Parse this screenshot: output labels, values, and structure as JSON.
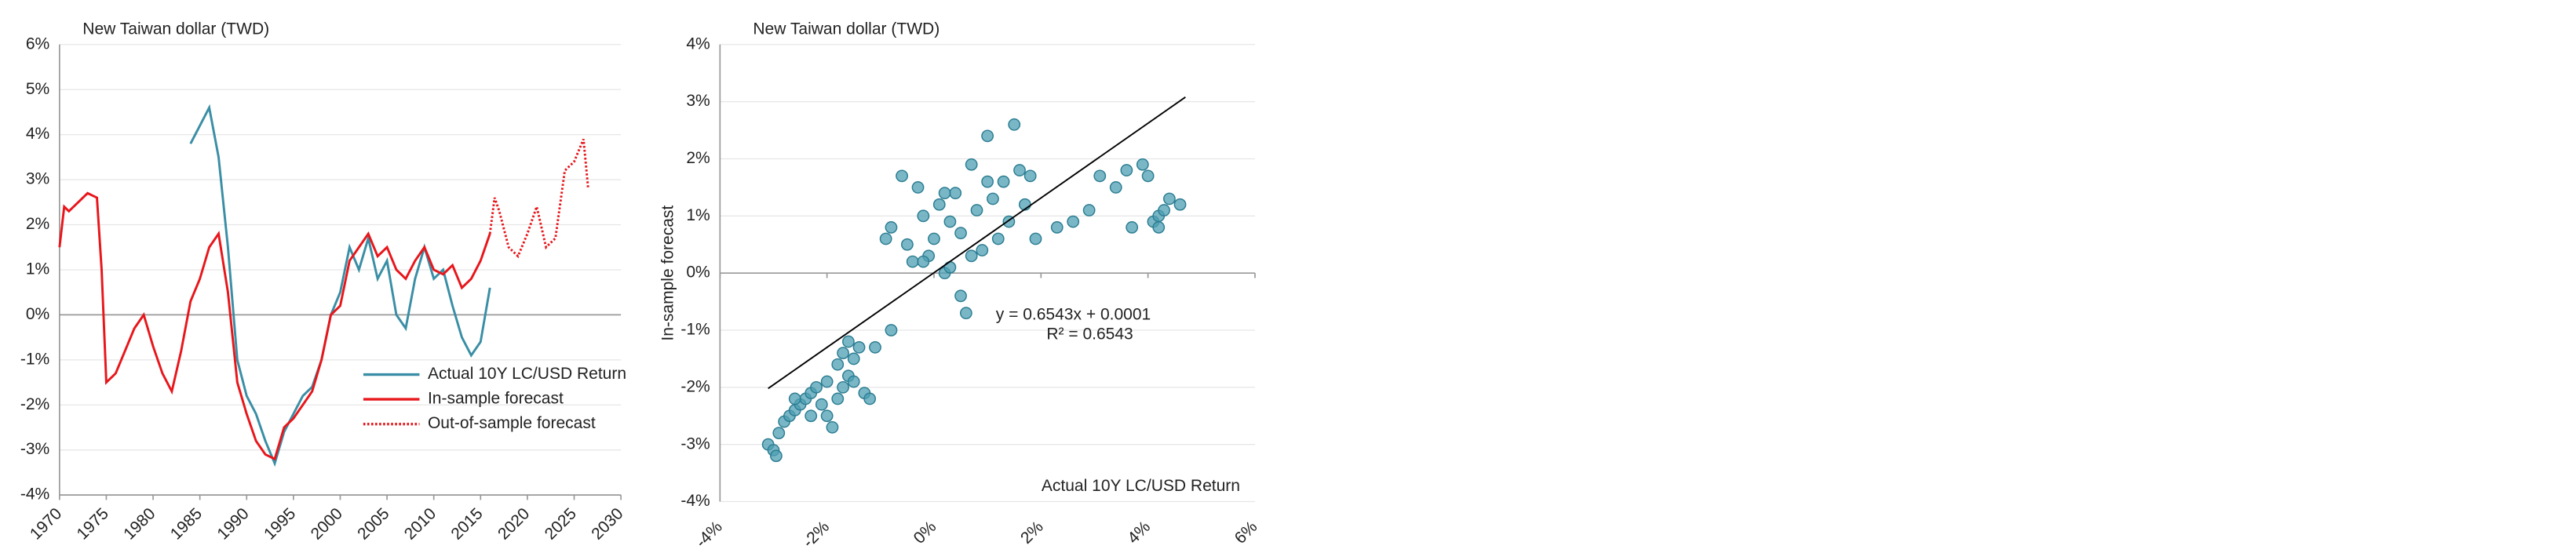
{
  "chart_data": [
    {
      "type": "line",
      "title": "New Taiwan dollar (TWD)",
      "xlim": [
        1970,
        2030
      ],
      "xticks": [
        1970,
        1975,
        1980,
        1985,
        1990,
        1995,
        2000,
        2005,
        2010,
        2015,
        2020,
        2025,
        2030
      ],
      "ylim": [
        -4,
        6
      ],
      "yticks": [
        {
          "value": -4,
          "label": "-4%"
        },
        {
          "value": -3,
          "label": "-3%"
        },
        {
          "value": -2,
          "label": "-2%"
        },
        {
          "value": -1,
          "label": "-1%"
        },
        {
          "value": 0,
          "label": "0%"
        },
        {
          "value": 1,
          "label": "1%"
        },
        {
          "value": 2,
          "label": "2%"
        },
        {
          "value": 3,
          "label": "3%"
        },
        {
          "value": 4,
          "label": "4%"
        },
        {
          "value": 5,
          "label": "5%"
        },
        {
          "value": 6,
          "label": "6%"
        }
      ],
      "grid": true,
      "legend": "lower right",
      "series": [
        {
          "name": "Actual 10Y LC/USD Return",
          "color": "#3a8ea5",
          "style": "solid",
          "x": [
            1984,
            1985,
            1986,
            1987,
            1988,
            1989,
            1990,
            1991,
            1992,
            1993,
            1994,
            1995,
            1996,
            1997,
            1998,
            1999,
            2000,
            2001,
            2002,
            2003,
            2004,
            2005,
            2006,
            2007,
            2008,
            2009,
            2010,
            2011,
            2012,
            2013,
            2014,
            2015,
            2016
          ],
          "values": [
            3.8,
            4.2,
            4.6,
            3.5,
            1.5,
            -1.0,
            -1.8,
            -2.2,
            -2.8,
            -3.3,
            -2.6,
            -2.2,
            -1.8,
            -1.6,
            -1.0,
            0.0,
            0.5,
            1.5,
            1.0,
            1.7,
            0.8,
            1.2,
            0.0,
            -0.3,
            0.8,
            1.5,
            0.8,
            1.0,
            0.2,
            -0.5,
            -0.9,
            -0.6,
            0.6
          ]
        },
        {
          "name": "In-sample forecast",
          "color": "#e8161b",
          "style": "solid",
          "x": [
            1970,
            1970.5,
            1971,
            1972,
            1973,
            1974,
            1974.5,
            1975,
            1976,
            1977,
            1978,
            1979,
            1980,
            1981,
            1982,
            1983,
            1984,
            1985,
            1986,
            1987,
            1988,
            1989,
            1990,
            1991,
            1992,
            1993,
            1994,
            1995,
            1996,
            1997,
            1998,
            1999,
            2000,
            2001,
            2002,
            2003,
            2004,
            2005,
            2006,
            2007,
            2008,
            2009,
            2010,
            2011,
            2012,
            2013,
            2014,
            2015,
            2016
          ],
          "values": [
            1.5,
            2.4,
            2.3,
            2.5,
            2.7,
            2.6,
            1.0,
            -1.5,
            -1.3,
            -0.8,
            -0.3,
            0.0,
            -0.7,
            -1.3,
            -1.7,
            -0.8,
            0.3,
            0.8,
            1.5,
            1.8,
            0.5,
            -1.5,
            -2.2,
            -2.8,
            -3.1,
            -3.2,
            -2.5,
            -2.3,
            -2.0,
            -1.7,
            -1.0,
            0.0,
            0.2,
            1.2,
            1.5,
            1.8,
            1.3,
            1.5,
            1.0,
            0.8,
            1.2,
            1.5,
            1.0,
            0.9,
            1.1,
            0.6,
            0.8,
            1.2,
            1.8
          ]
        },
        {
          "name": "Out-of-sample forecast",
          "color": "#e8161b",
          "style": "dotted",
          "x": [
            2016,
            2016.5,
            2017,
            2018,
            2019,
            2020,
            2021,
            2022,
            2023,
            2024,
            2025,
            2026,
            2026.5
          ],
          "values": [
            1.8,
            2.6,
            2.3,
            1.5,
            1.3,
            1.8,
            2.4,
            1.5,
            1.7,
            3.2,
            3.4,
            3.9,
            2.8
          ]
        }
      ]
    },
    {
      "type": "scatter",
      "title": "New Taiwan dollar (TWD)",
      "x_label": "Actual 10Y LC/USD Return",
      "y_label": "In-sample forecast",
      "equation": "y = 0.6543x + 0.0001",
      "r_squared": "R² = 0.6543",
      "xlim": [
        -4,
        6
      ],
      "xticks": [
        {
          "value": -4,
          "label": "-4%"
        },
        {
          "value": -2,
          "label": "-2%"
        },
        {
          "value": 0,
          "label": "0%"
        },
        {
          "value": 2,
          "label": "2%"
        },
        {
          "value": 4,
          "label": "4%"
        },
        {
          "value": 6,
          "label": "6%"
        }
      ],
      "ylim": [
        -4,
        4
      ],
      "yticks": [
        {
          "value": -4,
          "label": "-4%"
        },
        {
          "value": -3,
          "label": "-3%"
        },
        {
          "value": -2,
          "label": "-2%"
        },
        {
          "value": -1,
          "label": "-1%"
        },
        {
          "value": 0,
          "label": "0%"
        },
        {
          "value": 1,
          "label": "1%"
        },
        {
          "value": 2,
          "label": "2%"
        },
        {
          "value": 3,
          "label": "3%"
        },
        {
          "value": 4,
          "label": "4%"
        }
      ],
      "grid": true,
      "color": "#4e9fb3",
      "x": [
        -3.1,
        -3.0,
        -2.95,
        -2.9,
        -2.8,
        -2.7,
        -2.6,
        -2.5,
        -2.4,
        -2.3,
        -2.2,
        -2.1,
        -2.0,
        -2.0,
        -1.9,
        -1.8,
        -1.8,
        -1.7,
        -1.7,
        -1.6,
        -1.6,
        -1.5,
        -1.4,
        -1.3,
        -1.2,
        -1.1,
        -0.8,
        -2.6,
        -2.3,
        -1.5,
        -0.9,
        -0.8,
        -0.6,
        -0.5,
        -0.4,
        -0.3,
        -0.2,
        -0.1,
        0.0,
        0.1,
        0.2,
        0.3,
        0.4,
        0.5,
        0.6,
        0.7,
        0.8,
        0.9,
        1.0,
        1.1,
        1.2,
        1.3,
        1.4,
        1.5,
        1.6,
        1.7,
        1.8,
        1.9,
        0.5,
        0.3,
        1.0,
        0.2,
        -0.2,
        0.7,
        2.3,
        2.6,
        2.9,
        3.1,
        3.4,
        3.6,
        3.7,
        3.9,
        4.0,
        4.1,
        4.2,
        4.3,
        4.4,
        4.6,
        4.2
      ],
      "values": [
        -3.0,
        -3.1,
        -3.2,
        -2.8,
        -2.6,
        -2.5,
        -2.4,
        -2.3,
        -2.2,
        -2.1,
        -2.0,
        -2.3,
        -1.9,
        -2.5,
        -2.7,
        -1.6,
        -2.2,
        -1.4,
        -2.0,
        -1.2,
        -1.8,
        -1.5,
        -1.3,
        -2.1,
        -2.2,
        -1.3,
        -1.0,
        -2.2,
        -2.5,
        -1.9,
        0.6,
        0.8,
        1.7,
        0.5,
        0.2,
        1.5,
        1.0,
        0.3,
        0.6,
        1.2,
        0.0,
        0.9,
        1.4,
        0.7,
        -0.7,
        1.9,
        1.1,
        0.4,
        2.4,
        1.3,
        0.6,
        1.6,
        0.9,
        2.6,
        1.8,
        1.2,
        1.7,
        0.6,
        -0.4,
        0.1,
        1.6,
        1.4,
        0.2,
        0.3,
        0.8,
        0.9,
        1.1,
        1.7,
        1.5,
        1.8,
        0.8,
        1.9,
        1.7,
        0.9,
        1.0,
        1.1,
        1.3,
        1.2,
        0.8
      ],
      "trendline": {
        "x": [
          -3.1,
          4.7
        ],
        "values": [
          -2.02,
          3.08
        ]
      }
    }
  ]
}
